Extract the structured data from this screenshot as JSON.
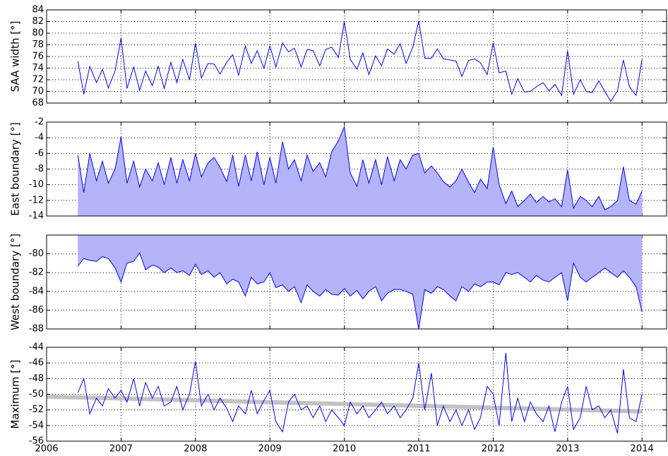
{
  "chart_data": [
    {
      "type": "line",
      "ylabel": "SAA width [°]",
      "x": [
        2006.42,
        2006.5,
        2006.58,
        2006.67,
        2006.75,
        2006.83,
        2006.92,
        2007.0,
        2007.08,
        2007.17,
        2007.25,
        2007.33,
        2007.42,
        2007.5,
        2007.58,
        2007.67,
        2007.75,
        2007.83,
        2007.92,
        2008.0,
        2008.08,
        2008.17,
        2008.25,
        2008.33,
        2008.42,
        2008.5,
        2008.58,
        2008.67,
        2008.75,
        2008.83,
        2008.92,
        2009.0,
        2009.08,
        2009.17,
        2009.25,
        2009.33,
        2009.42,
        2009.5,
        2009.58,
        2009.67,
        2009.75,
        2009.83,
        2009.92,
        2010.0,
        2010.08,
        2010.17,
        2010.25,
        2010.33,
        2010.42,
        2010.5,
        2010.58,
        2010.67,
        2010.75,
        2010.83,
        2010.92,
        2011.0,
        2011.08,
        2011.17,
        2011.25,
        2011.33,
        2011.42,
        2011.5,
        2011.58,
        2011.67,
        2011.75,
        2011.83,
        2011.92,
        2012.0,
        2012.08,
        2012.17,
        2012.25,
        2012.33,
        2012.42,
        2012.5,
        2012.58,
        2012.67,
        2012.75,
        2012.83,
        2012.92,
        2013.0,
        2013.08,
        2013.17,
        2013.25,
        2013.33,
        2013.42,
        2013.5,
        2013.58,
        2013.67,
        2013.75,
        2013.83,
        2013.92,
        2014.0
      ],
      "series": [
        {
          "color": "#0000ff",
          "values": [
            75.2,
            69.5,
            74.3,
            71.5,
            73.8,
            70.6,
            73.5,
            79.2,
            70.5,
            74.2,
            70.2,
            73.5,
            71.0,
            74.3,
            70.5,
            75.0,
            71.5,
            75.5,
            72.0,
            78.3,
            72.3,
            74.8,
            74.7,
            73.0,
            75.0,
            76.3,
            72.8,
            77.8,
            74.8,
            77.0,
            74.0,
            77.8,
            74.2,
            78.3,
            76.8,
            77.4,
            74.2,
            77.2,
            77.0,
            74.4,
            77.2,
            77.6,
            75.8,
            82.0,
            75.5,
            73.8,
            76.6,
            72.9,
            76.1,
            74.4,
            77.3,
            76.4,
            78.2,
            74.8,
            77.6,
            82.1,
            75.7,
            75.7,
            77.3,
            75.6,
            75.4,
            75.2,
            72.6,
            75.3,
            75.6,
            74.9,
            72.9,
            78.4,
            73.2,
            73.5,
            69.5,
            72.2,
            69.9,
            70.0,
            70.8,
            71.5,
            70.1,
            71.2,
            69.3,
            77.0,
            69.5,
            72.0,
            70.0,
            69.8,
            71.8,
            70.0,
            68.3,
            70.1,
            75.4,
            70.8,
            69.3,
            75.5
          ]
        }
      ],
      "xlim": [
        2006,
        2014.33
      ],
      "xticks": [
        2006,
        2007,
        2008,
        2009,
        2010,
        2011,
        2012,
        2013,
        2014
      ],
      "ylim": [
        68,
        84
      ],
      "yticks": [
        68,
        70,
        72,
        74,
        76,
        78,
        80,
        82,
        84
      ],
      "grid": true
    },
    {
      "type": "line",
      "ylabel": "East boundary [°]",
      "fill": "down",
      "fill_color": "#b4b4fa",
      "x": [
        2006.42,
        2006.5,
        2006.58,
        2006.67,
        2006.75,
        2006.83,
        2006.92,
        2007.0,
        2007.08,
        2007.17,
        2007.25,
        2007.33,
        2007.42,
        2007.5,
        2007.58,
        2007.67,
        2007.75,
        2007.83,
        2007.92,
        2008.0,
        2008.08,
        2008.17,
        2008.25,
        2008.33,
        2008.42,
        2008.5,
        2008.58,
        2008.67,
        2008.75,
        2008.83,
        2008.92,
        2009.0,
        2009.08,
        2009.17,
        2009.25,
        2009.33,
        2009.42,
        2009.5,
        2009.58,
        2009.67,
        2009.75,
        2009.83,
        2009.92,
        2010.0,
        2010.08,
        2010.17,
        2010.25,
        2010.33,
        2010.42,
        2010.5,
        2010.58,
        2010.67,
        2010.75,
        2010.83,
        2010.92,
        2011.0,
        2011.08,
        2011.17,
        2011.25,
        2011.33,
        2011.42,
        2011.5,
        2011.58,
        2011.67,
        2011.75,
        2011.83,
        2011.92,
        2012.0,
        2012.08,
        2012.17,
        2012.25,
        2012.33,
        2012.42,
        2012.5,
        2012.58,
        2012.67,
        2012.75,
        2012.83,
        2012.92,
        2013.0,
        2013.08,
        2013.17,
        2013.25,
        2013.33,
        2013.42,
        2013.5,
        2013.58,
        2013.67,
        2013.75,
        2013.83,
        2013.92,
        2014.0
      ],
      "series": [
        {
          "color": "#0000ff",
          "values": [
            -6.2,
            -11.0,
            -6.0,
            -9.5,
            -7.0,
            -9.8,
            -8.0,
            -3.9,
            -9.8,
            -7.0,
            -10.3,
            -8.0,
            -9.5,
            -7.2,
            -10.0,
            -6.5,
            -9.8,
            -6.8,
            -9.5,
            -6.0,
            -9.0,
            -7.2,
            -6.5,
            -7.8,
            -9.6,
            -6.2,
            -10.2,
            -6.2,
            -9.5,
            -5.8,
            -10.0,
            -6.5,
            -9.8,
            -4.5,
            -8.0,
            -6.8,
            -9.5,
            -6.2,
            -8.3,
            -7.2,
            -9.0,
            -5.8,
            -4.4,
            -2.6,
            -8.5,
            -10.2,
            -6.8,
            -9.8,
            -6.8,
            -10.0,
            -6.4,
            -9.5,
            -6.8,
            -8.0,
            -6.2,
            -6.0,
            -8.5,
            -7.6,
            -8.5,
            -9.6,
            -10.3,
            -9.5,
            -8.0,
            -9.7,
            -11.0,
            -9.3,
            -10.5,
            -5.2,
            -10.0,
            -12.4,
            -10.8,
            -12.8,
            -12.0,
            -11.2,
            -12.3,
            -11.5,
            -12.2,
            -11.8,
            -12.8,
            -8.1,
            -13.0,
            -11.5,
            -12.0,
            -12.8,
            -11.5,
            -13.2,
            -12.8,
            -12.0,
            -7.7,
            -12.0,
            -12.5,
            -10.8
          ]
        }
      ],
      "xlim": [
        2006,
        2014.33
      ],
      "xticks": [
        2006,
        2007,
        2008,
        2009,
        2010,
        2011,
        2012,
        2013,
        2014
      ],
      "ylim": [
        -14,
        -2
      ],
      "yticks": [
        -14,
        -12,
        -10,
        -8,
        -6,
        -4,
        -2
      ],
      "grid": true
    },
    {
      "type": "line",
      "ylabel": "West boundary [°]",
      "fill": "up",
      "fill_color": "#b4b4fa",
      "x": [
        2006.42,
        2006.5,
        2006.58,
        2006.67,
        2006.75,
        2006.83,
        2006.92,
        2007.0,
        2007.08,
        2007.17,
        2007.25,
        2007.33,
        2007.42,
        2007.5,
        2007.58,
        2007.67,
        2007.75,
        2007.83,
        2007.92,
        2008.0,
        2008.08,
        2008.17,
        2008.25,
        2008.33,
        2008.42,
        2008.5,
        2008.58,
        2008.67,
        2008.75,
        2008.83,
        2008.92,
        2009.0,
        2009.08,
        2009.17,
        2009.25,
        2009.33,
        2009.42,
        2009.5,
        2009.58,
        2009.67,
        2009.75,
        2009.83,
        2009.92,
        2010.0,
        2010.08,
        2010.17,
        2010.25,
        2010.33,
        2010.42,
        2010.5,
        2010.58,
        2010.67,
        2010.75,
        2010.83,
        2010.92,
        2011.0,
        2011.08,
        2011.17,
        2011.25,
        2011.33,
        2011.42,
        2011.5,
        2011.58,
        2011.67,
        2011.75,
        2011.83,
        2011.92,
        2012.0,
        2012.08,
        2012.17,
        2012.25,
        2012.33,
        2012.42,
        2012.5,
        2012.58,
        2012.67,
        2012.75,
        2012.83,
        2012.92,
        2013.0,
        2013.08,
        2013.17,
        2013.25,
        2013.33,
        2013.42,
        2013.5,
        2013.58,
        2013.67,
        2013.75,
        2013.83,
        2013.92,
        2014.0
      ],
      "series": [
        {
          "color": "#0000ff",
          "values": [
            -81.3,
            -80.5,
            -80.7,
            -80.8,
            -80.3,
            -80.5,
            -81.5,
            -83.0,
            -81.0,
            -80.8,
            -79.9,
            -81.7,
            -81.2,
            -81.4,
            -82.0,
            -81.5,
            -82.0,
            -81.8,
            -82.3,
            -81.1,
            -82.2,
            -81.8,
            -82.5,
            -82.0,
            -83.2,
            -82.7,
            -83.0,
            -84.5,
            -82.5,
            -83.2,
            -83.0,
            -82.0,
            -83.6,
            -83.3,
            -84.0,
            -83.5,
            -85.2,
            -83.3,
            -84.0,
            -84.5,
            -83.8,
            -84.3,
            -84.4,
            -83.7,
            -84.5,
            -83.9,
            -84.8,
            -84.0,
            -83.5,
            -85.0,
            -84.2,
            -83.8,
            -83.8,
            -84.0,
            -84.3,
            -88.0,
            -83.8,
            -84.2,
            -83.5,
            -83.8,
            -84.5,
            -85.0,
            -83.5,
            -84.0,
            -83.2,
            -83.5,
            -83.0,
            -83.0,
            -83.3,
            -82.0,
            -82.2,
            -82.0,
            -82.5,
            -83.0,
            -82.3,
            -82.8,
            -83.0,
            -82.5,
            -82.0,
            -85.0,
            -81.0,
            -82.5,
            -83.0,
            -82.5,
            -82.0,
            -81.5,
            -82.0,
            -82.5,
            -81.8,
            -82.5,
            -83.5,
            -86.2
          ]
        }
      ],
      "xlim": [
        2006,
        2014.33
      ],
      "xticks": [
        2006,
        2007,
        2008,
        2009,
        2010,
        2011,
        2012,
        2013,
        2014
      ],
      "ylim": [
        -88,
        -78
      ],
      "yticks": [
        -88,
        -86,
        -84,
        -82,
        -80
      ],
      "grid": true
    },
    {
      "type": "line",
      "ylabel": "Maximum [°]",
      "x": [
        2006.42,
        2006.5,
        2006.58,
        2006.67,
        2006.75,
        2006.83,
        2006.92,
        2007.0,
        2007.08,
        2007.17,
        2007.25,
        2007.33,
        2007.42,
        2007.5,
        2007.58,
        2007.67,
        2007.75,
        2007.83,
        2007.92,
        2008.0,
        2008.08,
        2008.17,
        2008.25,
        2008.33,
        2008.42,
        2008.5,
        2008.58,
        2008.67,
        2008.75,
        2008.83,
        2008.92,
        2009.0,
        2009.08,
        2009.17,
        2009.25,
        2009.33,
        2009.42,
        2009.5,
        2009.58,
        2009.67,
        2009.75,
        2009.83,
        2009.92,
        2010.0,
        2010.08,
        2010.17,
        2010.25,
        2010.33,
        2010.42,
        2010.5,
        2010.58,
        2010.67,
        2010.75,
        2010.83,
        2010.92,
        2011.0,
        2011.08,
        2011.17,
        2011.25,
        2011.33,
        2011.42,
        2011.5,
        2011.58,
        2011.67,
        2011.75,
        2011.83,
        2011.92,
        2012.0,
        2012.08,
        2012.17,
        2012.25,
        2012.33,
        2012.42,
        2012.5,
        2012.58,
        2012.67,
        2012.75,
        2012.83,
        2012.92,
        2013.0,
        2013.08,
        2013.17,
        2013.25,
        2013.33,
        2013.42,
        2013.5,
        2013.58,
        2013.67,
        2013.75,
        2013.83,
        2013.92,
        2014.0
      ],
      "series": [
        {
          "color": "#0000ff",
          "values": [
            -49.8,
            -48.0,
            -52.5,
            -50.5,
            -51.5,
            -49.3,
            -50.5,
            -49.5,
            -51.0,
            -48.0,
            -51.5,
            -48.5,
            -50.5,
            -49.0,
            -51.5,
            -51.0,
            -49.0,
            -52.0,
            -50.0,
            -45.8,
            -51.5,
            -50.0,
            -52.0,
            -50.5,
            -51.8,
            -53.5,
            -51.5,
            -52.5,
            -49.5,
            -52.5,
            -50.8,
            -49.5,
            -53.5,
            -54.8,
            -51.0,
            -50.0,
            -52.0,
            -51.5,
            -53.0,
            -51.5,
            -53.5,
            -52.0,
            -53.0,
            -54.0,
            -51.0,
            -52.5,
            -51.5,
            -53.0,
            -52.0,
            -51.0,
            -52.5,
            -51.5,
            -53.0,
            -52.0,
            -50.5,
            -46.0,
            -52.0,
            -47.3,
            -54.0,
            -51.5,
            -53.5,
            -52.0,
            -54.0,
            -52.0,
            -54.5,
            -53.0,
            -49.0,
            -50.0,
            -54.0,
            -44.7,
            -53.5,
            -50.5,
            -53.5,
            -51.0,
            -52.5,
            -53.5,
            -51.5,
            -54.8,
            -51.0,
            -49.0,
            -54.5,
            -53.0,
            -49.0,
            -52.0,
            -51.5,
            -53.0,
            -52.0,
            -55.0,
            -46.8,
            -53.0,
            -53.5,
            -50.0
          ]
        }
      ],
      "trend": {
        "x": [
          2006,
          2014
        ],
        "values": [
          -50.3,
          -52.2
        ],
        "color": "#bbbbbb"
      },
      "xlim": [
        2006,
        2014.33
      ],
      "xticks": [
        2006,
        2007,
        2008,
        2009,
        2010,
        2011,
        2012,
        2013,
        2014
      ],
      "ylim": [
        -56,
        -44
      ],
      "yticks": [
        -56,
        -54,
        -52,
        -50,
        -48,
        -46,
        -44
      ],
      "grid": true
    }
  ]
}
